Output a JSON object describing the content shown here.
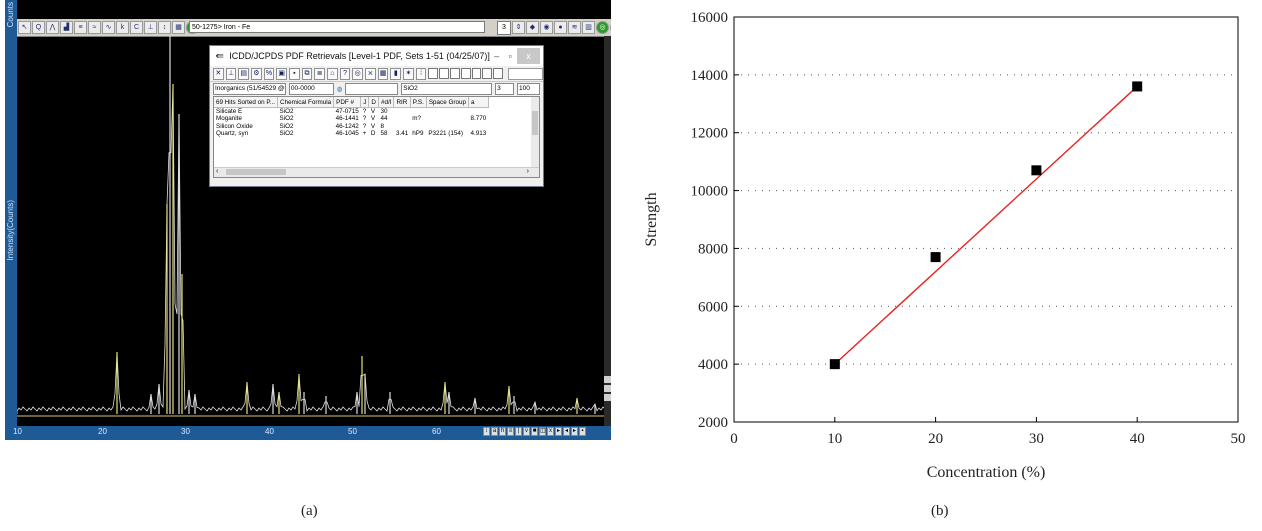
{
  "panel_a": {
    "caption": "(a)",
    "left_strip_top": "Counts",
    "left_strip_label": "Intensity(Counts)",
    "pdf_combo": "50-1275> Iron - Fe",
    "pdf_num": "3",
    "x_ticks": [
      "10",
      "20",
      "30",
      "40",
      "50",
      "60"
    ],
    "dialog": {
      "title": "ICDD/JCPDS PDF Retrievals [Level-1 PDF, Sets 1-51 (04/25/07)]",
      "database_combo": "Inorganics (51/54529 @C",
      "pdf_combo": "00-0000",
      "formula_combo": "SiO2",
      "count_field": "3",
      "limit_field": "100",
      "columns": [
        "69 Hits Sorted on P...",
        "Chemical Formula",
        "PDF #",
        "J",
        "D",
        "#d/I",
        "RIR",
        "P.S.",
        "Space Group",
        "a"
      ],
      "rows": [
        [
          "Silicate E",
          "SiO2",
          "47-0715",
          "?",
          "V",
          "30",
          "",
          "",
          "",
          ""
        ],
        [
          "Moganite",
          "SiO2",
          "46-1441",
          "?",
          "V",
          "44",
          "",
          "m?",
          "",
          "8.770"
        ],
        [
          "Silicon Oxide",
          "SiO2",
          "46-1242",
          "?",
          "V",
          "8",
          "",
          "",
          "",
          ""
        ],
        [
          "Quartz, syn",
          "SiO2",
          "46-1045",
          "+",
          "D",
          "58",
          "3.41",
          "hP9",
          "P3221 (154)",
          "4.913"
        ]
      ]
    }
  },
  "panel_b": {
    "caption": "(b)",
    "colors": {
      "line": "#e8231f",
      "marker": "#000000",
      "grid": "#555555"
    }
  },
  "chart_data": {
    "type": "scatter",
    "xlabel": "Concentration (%)",
    "ylabel": "Strength",
    "xlim": [
      0,
      50
    ],
    "ylim": [
      2000,
      16000
    ],
    "x_ticks": [
      "0",
      "10",
      "20",
      "30",
      "40",
      "50"
    ],
    "y_ticks": [
      "2000",
      "4000",
      "6000",
      "8000",
      "10000",
      "12000",
      "14000",
      "16000"
    ],
    "grid": "horizontal dotted",
    "series": [
      {
        "x": [
          10,
          20,
          30,
          40
        ],
        "y": [
          4000,
          7700,
          10700,
          13600
        ],
        "marker": "square"
      }
    ],
    "trendline": {
      "x": [
        10,
        40
      ],
      "y": [
        4000,
        13600
      ]
    }
  }
}
